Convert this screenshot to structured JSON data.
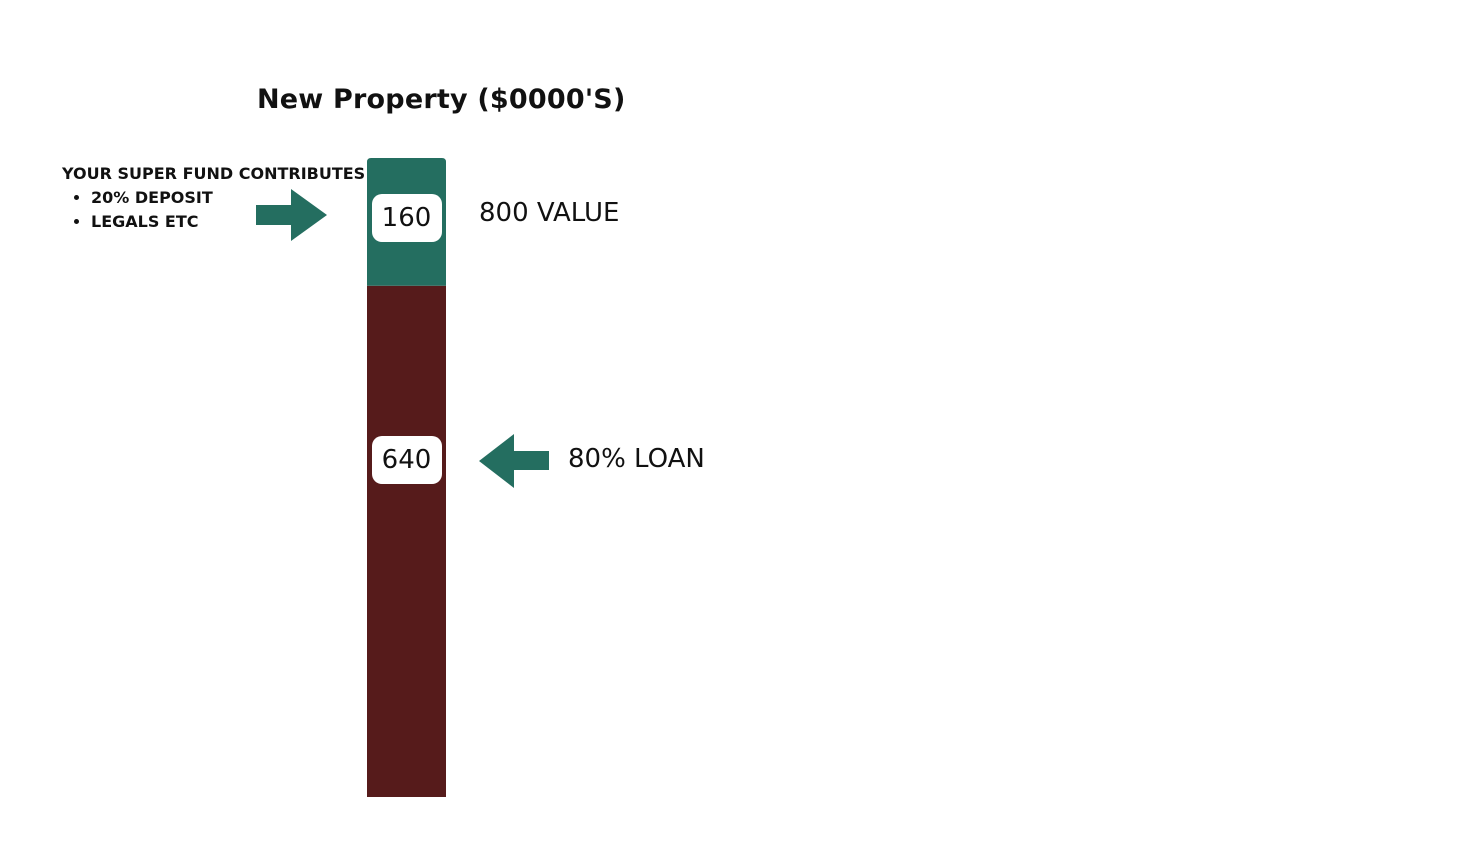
{
  "chart_data": {
    "type": "bar",
    "title": "New Property ($0000'S)",
    "stacked": true,
    "categories": [
      ""
    ],
    "series": [
      {
        "values": [
          640
        ],
        "color": "#561b1b"
      },
      {
        "values": [
          160
        ],
        "color": "#246e60"
      }
    ],
    "data_labels": [
      "640",
      "160"
    ],
    "total_label": "800 VALUE",
    "annotations": {
      "contribution_heading": "YOUR SUPER FUND CONTRIBUTES:",
      "contribution_items": [
        "20% DEPOSIT",
        "LEGALS ETC"
      ],
      "loan_label": "80% LOAN"
    },
    "arrow_color": "#246e60",
    "ylim": [
      0,
      800
    ]
  }
}
